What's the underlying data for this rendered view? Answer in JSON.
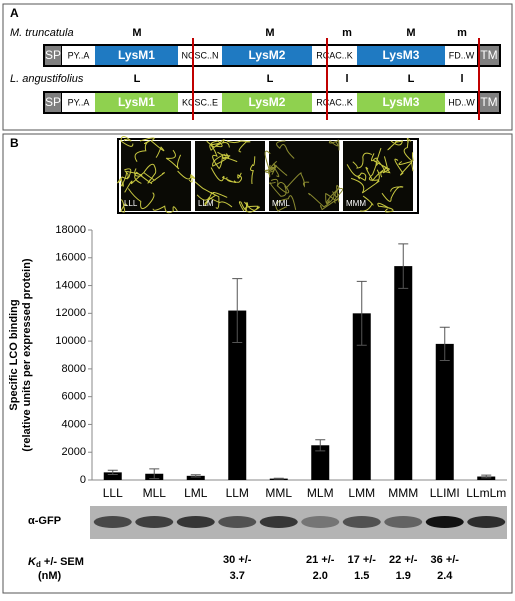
{
  "panel_a": {
    "label": "A",
    "rows": [
      {
        "organism": "M. truncatula",
        "color": "#1f7ac2",
        "letters": [
          "M",
          "M",
          "m",
          "M",
          "m"
        ],
        "domains": [
          "SP",
          "PY..A",
          "LysM1",
          "NCSC..N",
          "LysM2",
          "RCAC..K",
          "LysM3",
          "FD..W",
          "TM"
        ]
      },
      {
        "organism": "L. angustifolius",
        "color": "#8fd14f",
        "letters": [
          "L",
          "L",
          "l",
          "L",
          "l"
        ],
        "domains": [
          "SP",
          "PY..A",
          "LysM1",
          "KCSC..E",
          "LysM2",
          "RCAC..K",
          "LysM3",
          "HD..W",
          "TM"
        ]
      }
    ]
  },
  "panel_b": {
    "label": "B",
    "image_labels": [
      "LLL",
      "LLM",
      "MML",
      "MMM"
    ],
    "blot_label": "α-GFP",
    "kd_label": {
      "symbol": "K",
      "subscript": "d",
      "text": " +/- SEM",
      "unit": "(nM)"
    },
    "kd_rows": [
      [
        null,
        null,
        null,
        "30 +/-",
        null,
        "21 +/-",
        "17 +/-",
        "22 +/-",
        "36 +/-",
        null
      ],
      [
        null,
        null,
        null,
        "3.7",
        null,
        "2.0",
        "1.5",
        "1.9",
        "2.4",
        null
      ]
    ]
  },
  "chart_data": {
    "type": "bar",
    "y_label": [
      "Specific LCO binding",
      "(relative units per expressed protein)"
    ],
    "categories": [
      "LLL",
      "MLL",
      "LML",
      "LLM",
      "MML",
      "MLM",
      "LMM",
      "MMM",
      "LLIMI",
      "LLmLm"
    ],
    "values": [
      550,
      450,
      300,
      12200,
      100,
      2500,
      12000,
      15400,
      9800,
      250
    ],
    "errors": [
      150,
      350,
      80,
      2300,
      30,
      400,
      2300,
      1600,
      1200,
      100
    ],
    "color": "#000000",
    "ylim": [
      0,
      18000
    ],
    "yticks": [
      0,
      2000,
      4000,
      6000,
      8000,
      10000,
      12000,
      14000,
      16000,
      18000
    ]
  }
}
